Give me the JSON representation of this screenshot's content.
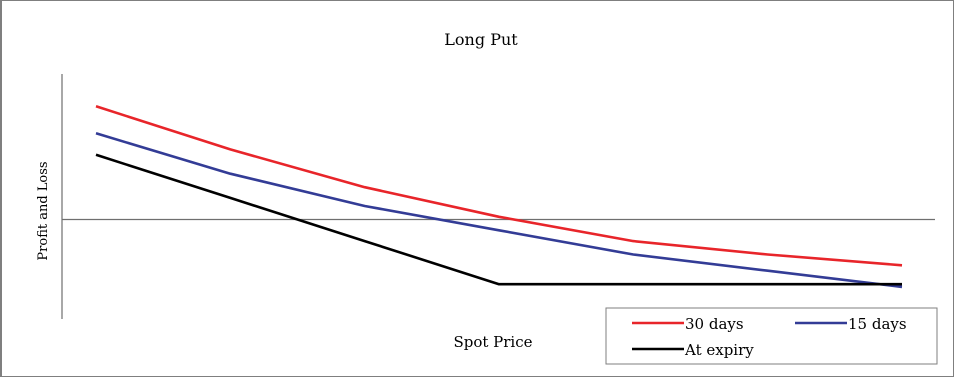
{
  "chart_data": {
    "type": "line",
    "title": "Long Put",
    "xlabel": "Spot Price",
    "ylabel": "Profit and Loss",
    "x": [
      0,
      1,
      2,
      3,
      4,
      5,
      6
    ],
    "xlim": [
      0,
      6
    ],
    "ylim": [
      -5.4,
      5.4
    ],
    "grid": false,
    "legend_position": "bottom-right",
    "series": [
      {
        "name": "30 days",
        "color": "#e8252a",
        "values": [
          4.2,
          2.6,
          1.2,
          0.1,
          -0.8,
          -1.3,
          -1.7
        ]
      },
      {
        "name": "15 days",
        "color": "#333c96",
        "values": [
          3.2,
          1.7,
          0.5,
          -0.4,
          -1.3,
          -1.9,
          -2.5
        ]
      },
      {
        "name": "At expiry",
        "color": "#000000",
        "values": [
          2.4,
          0.8,
          -0.8,
          -2.4,
          -2.4,
          -2.4,
          -2.4
        ]
      }
    ]
  }
}
